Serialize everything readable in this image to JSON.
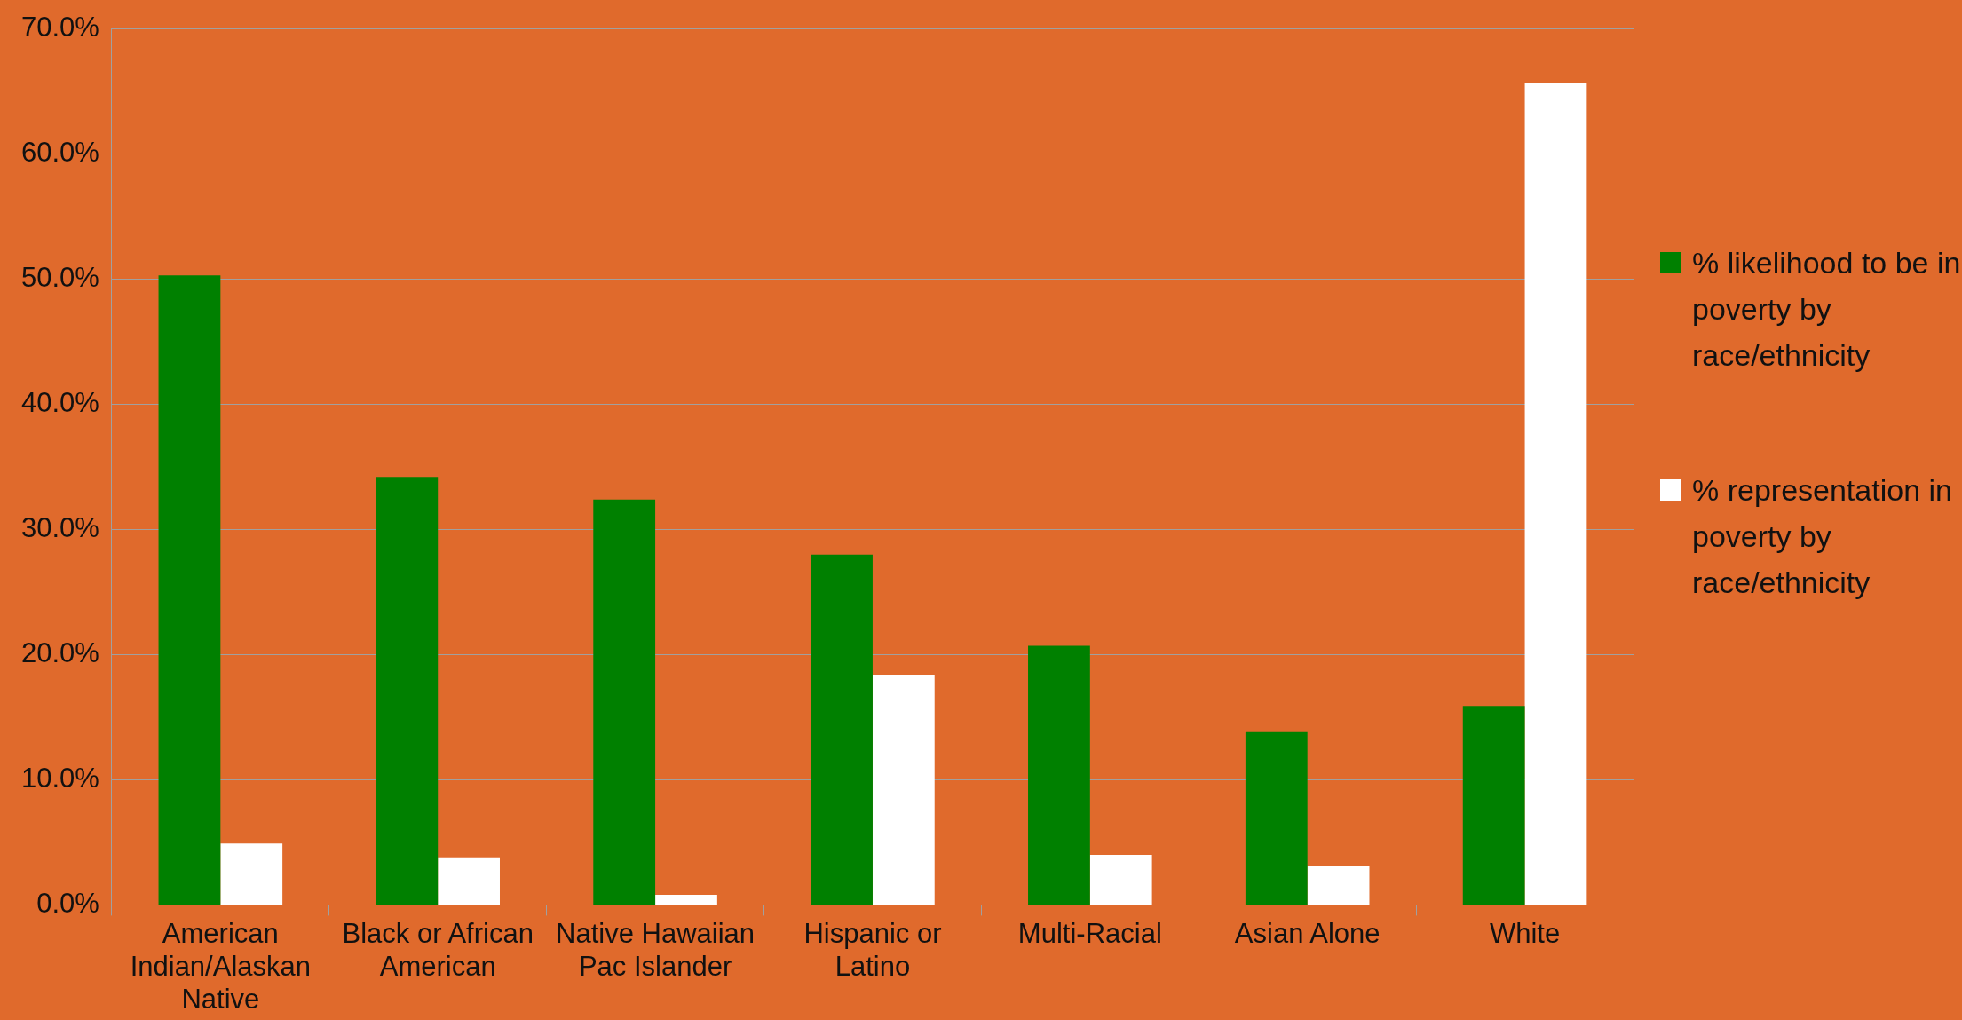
{
  "chart_data": {
    "type": "bar",
    "categories": [
      "American Indian/Alaskan Native",
      "Black or African American",
      "Native Hawaiian Pac Islander",
      "Hispanic or Latino",
      "Multi-Racial",
      "Asian Alone",
      "White"
    ],
    "series": [
      {
        "name": "% likelihood to be in poverty by race/ethnicity",
        "color": "#008000",
        "values": [
          50.3,
          34.2,
          32.4,
          28.0,
          20.7,
          13.8,
          15.9
        ]
      },
      {
        "name": "% representation in poverty by race/ethnicity",
        "color": "#ffffff",
        "values": [
          4.9,
          3.8,
          0.8,
          18.4,
          4.0,
          3.1,
          65.7
        ]
      }
    ],
    "ylim": [
      0,
      70
    ],
    "yticks": [
      {
        "value": 0,
        "label": "0.0%"
      },
      {
        "value": 10,
        "label": "10.0%"
      },
      {
        "value": 20,
        "label": "20.0%"
      },
      {
        "value": 30,
        "label": "30.0%"
      },
      {
        "value": 40,
        "label": "40.0%"
      },
      {
        "value": 50,
        "label": "50.0%"
      },
      {
        "value": 60,
        "label": "60.0%"
      },
      {
        "value": 70,
        "label": "70.0%"
      }
    ],
    "grid": "y",
    "legend": "right"
  }
}
